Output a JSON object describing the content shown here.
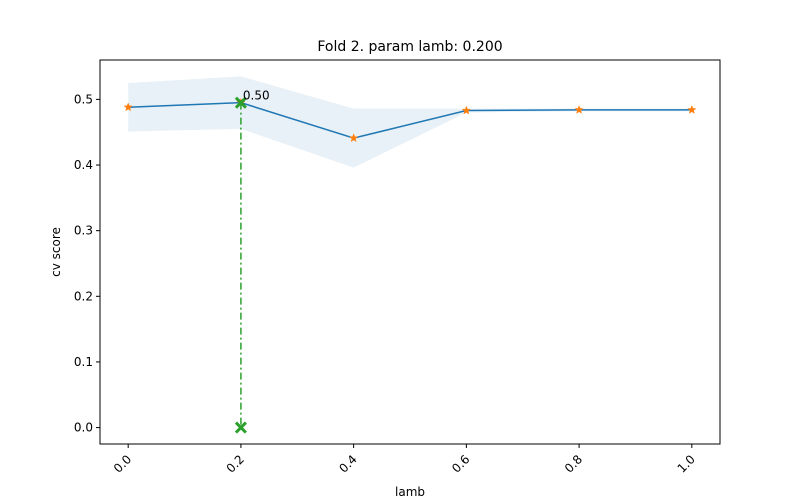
{
  "chart_data": {
    "type": "line",
    "title": "Fold 2. param lamb: 0.200",
    "xlabel": "lamb",
    "ylabel": "cv score",
    "xlim": [
      -0.05,
      1.05
    ],
    "ylim": [
      -0.025,
      0.56
    ],
    "xticks": [
      "0.0",
      "0.2",
      "0.4",
      "0.6",
      "0.8",
      "1.0"
    ],
    "xtick_values": [
      0.0,
      0.2,
      0.4,
      0.6,
      0.8,
      1.0
    ],
    "yticks": [
      "0.0",
      "0.1",
      "0.2",
      "0.3",
      "0.4",
      "0.5"
    ],
    "ytick_values": [
      0.0,
      0.1,
      0.2,
      0.3,
      0.4,
      0.5
    ],
    "grid": false,
    "series": [
      {
        "x": [
          0.0,
          0.2,
          0.4,
          0.6,
          0.8,
          1.0
        ],
        "values": [
          0.488,
          0.495,
          0.441,
          0.483,
          0.484,
          0.484
        ],
        "upper": [
          0.525,
          0.535,
          0.486,
          0.486,
          0.486,
          0.486
        ],
        "lower": [
          0.451,
          0.455,
          0.396,
          0.48,
          0.482,
          0.482
        ],
        "line_color": "#1f77b4",
        "marker_color": "#ff7f0e",
        "band_color": "#1f77b4"
      }
    ],
    "best": {
      "x": 0.2,
      "y": 0.495,
      "label": "0.50",
      "color": "#2ca02c"
    }
  }
}
